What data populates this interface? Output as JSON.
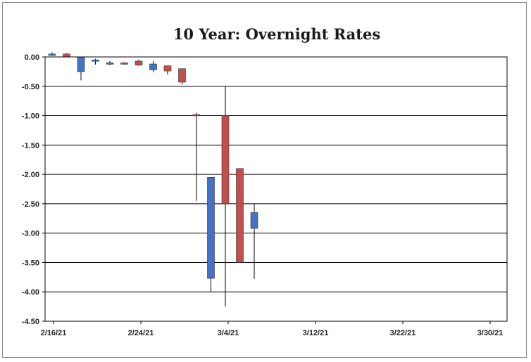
{
  "chart_data": {
    "type": "candlestick",
    "title": "10 Year:  Overnight Rates",
    "xlabel": "",
    "ylabel": "",
    "ylim": [
      -4.5,
      0.0
    ],
    "yticks": [
      0.0,
      -0.5,
      -1.0,
      -1.5,
      -2.0,
      -2.5,
      -3.0,
      -3.5,
      -4.0,
      -4.5
    ],
    "ytick_labels": [
      "0.00",
      "-0.50",
      "-1.00",
      "-1.50",
      "-2.00",
      "-2.50",
      "-3.00",
      "-3.50",
      "-4.00",
      "-4.50"
    ],
    "xticks": [
      "2/16/21",
      "2/24/21",
      "3/4/21",
      "3/12/21",
      "3/22/21",
      "3/30/21"
    ],
    "grid": true,
    "colors": {
      "up": "#4472c4",
      "down": "#c0504d",
      "wick": "#000000",
      "grid": "#000000"
    },
    "candles": [
      {
        "date": "2/16/21",
        "open": 0.05,
        "high": 0.08,
        "low": 0.02,
        "close": 0.05
      },
      {
        "date": "2/17/21",
        "open": 0.05,
        "high": 0.06,
        "low": 0.0,
        "close": 0.0
      },
      {
        "date": "2/18/21",
        "open": -0.25,
        "high": 0.0,
        "low": -0.4,
        "close": 0.0
      },
      {
        "date": "2/19/21",
        "open": -0.05,
        "high": -0.03,
        "low": -0.13,
        "close": -0.05
      },
      {
        "date": "2/22/21",
        "open": -0.1,
        "high": -0.07,
        "low": -0.14,
        "close": -0.1
      },
      {
        "date": "2/23/21",
        "open": -0.1,
        "high": -0.09,
        "low": -0.13,
        "close": -0.11
      },
      {
        "date": "2/24/21",
        "open": -0.07,
        "high": -0.05,
        "low": -0.15,
        "close": -0.14
      },
      {
        "date": "2/25/21",
        "open": -0.22,
        "high": -0.07,
        "low": -0.26,
        "close": -0.12
      },
      {
        "date": "2/26/21",
        "open": -0.15,
        "high": -0.15,
        "low": -0.3,
        "close": -0.24
      },
      {
        "date": "3/1/21",
        "open": -0.2,
        "high": -0.2,
        "low": -0.47,
        "close": -0.43
      },
      {
        "date": "3/2/21",
        "open": -0.98,
        "high": -0.95,
        "low": -2.45,
        "close": -1.0
      },
      {
        "date": "3/3/21",
        "open": -3.77,
        "high": -2.05,
        "low": -4.0,
        "close": -2.05
      },
      {
        "date": "3/4/21",
        "open": -1.0,
        "high": -0.5,
        "low": -4.25,
        "close": -2.5
      },
      {
        "date": "3/5/21",
        "open": -1.9,
        "high": -1.9,
        "low": -3.5,
        "close": -3.5
      },
      {
        "date": "3/8/21",
        "open": -2.92,
        "high": -2.5,
        "low": -3.78,
        "close": -2.65
      }
    ]
  }
}
